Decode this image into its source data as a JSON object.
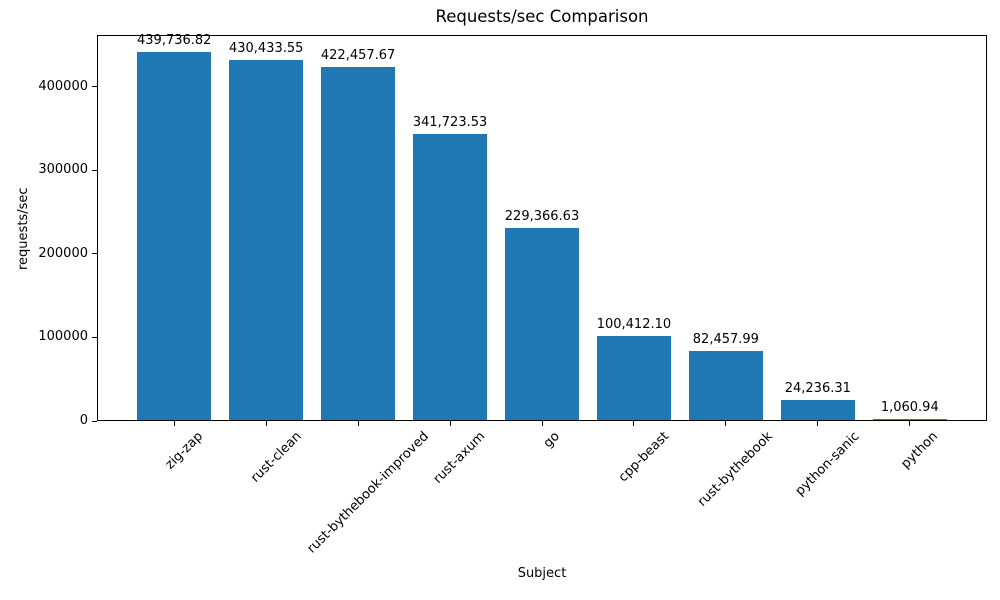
{
  "chart_data": {
    "type": "bar",
    "title": "Requests/sec Comparison",
    "xlabel": "Subject",
    "ylabel": "requests/sec",
    "categories": [
      "zig-zap",
      "rust-clean",
      "rust-bythebook-improved",
      "rust-axum",
      "go",
      "cpp-beast",
      "rust-bythebook",
      "python-sanic",
      "python"
    ],
    "values": [
      439736.82,
      430433.55,
      422457.67,
      341723.53,
      229366.63,
      100412.1,
      82457.99,
      24236.31,
      1060.94
    ],
    "value_labels": [
      "439,736.82",
      "430,433.55",
      "422,457.67",
      "341,723.53",
      "229,366.63",
      "100,412.10",
      "82,457.99",
      "24,236.31",
      "1,060.94"
    ],
    "y_ticks": [
      0,
      100000,
      200000,
      300000,
      400000
    ],
    "y_tick_labels": [
      "0",
      "100000",
      "200000",
      "300000",
      "400000"
    ],
    "ylim": [
      0,
      461723.66
    ],
    "bar_color": "#1f77b4",
    "grid": false,
    "legend": false
  }
}
